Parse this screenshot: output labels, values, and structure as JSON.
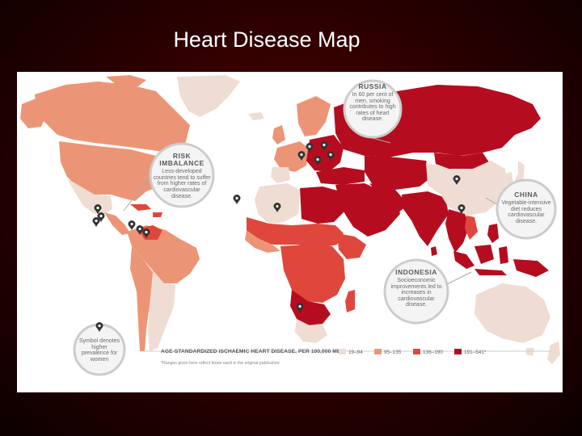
{
  "slide": {
    "title": "Heart Disease Map"
  },
  "callouts": {
    "russia": {
      "heading": "RUSSIA",
      "text": "In 60 per cent of men, smoking contributes to high rates of heart disease."
    },
    "risk": {
      "heading": "RISK IMBALANCE",
      "text": "Less-developed countries tend to suffer from higher rates of cardiovascular disease."
    },
    "china": {
      "heading": "CHINA",
      "text": "Vegetable-intensive diet reduces cardiovascular disease."
    },
    "indonesia": {
      "heading": "INDONESIA",
      "text": "Socioeconomic improvements led to increases in cardiovascular disease."
    },
    "symbol": {
      "heading": "",
      "text": "Symbol denotes higher prevalence for women"
    }
  },
  "legend": {
    "title": "AGE-STANDARDIZED ISCHAEMIC HEART DISEASE, PER 100,000 MEN",
    "note": "*Ranges given here reflect those used in the original publication",
    "items": [
      {
        "label": "19–94",
        "color": "#efdcd3"
      },
      {
        "label": "95–135",
        "color": "#ec9576"
      },
      {
        "label": "136–190",
        "color": "#e0473c"
      },
      {
        "label": "191–541*",
        "color": "#b50d1f"
      }
    ]
  },
  "colors": {
    "ocean": "#ffffff",
    "low": "#efdcd3",
    "mid_low": "#ec9576",
    "mid_high": "#e0473c",
    "high": "#b50d1f",
    "callout_bg": "#f4f4f4",
    "callout_ring": "#cccccc",
    "pin": "#333333"
  },
  "icons": {
    "pin": "map-pin-icon"
  }
}
